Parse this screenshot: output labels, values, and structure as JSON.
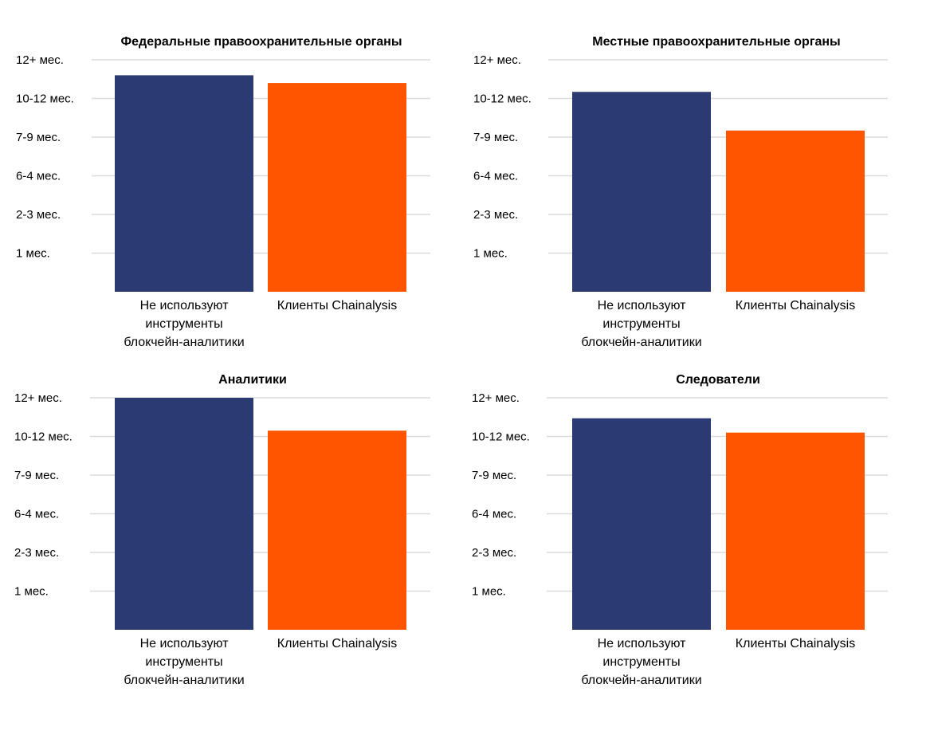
{
  "chart_data": [
    {
      "type": "bar",
      "title": "Федеральные правоохранительные органы",
      "y_ticks": [
        "1 мес.",
        "2-3 мес.",
        "6-4 мес.",
        "7-9 мес.",
        "10-12 мес.",
        "12+ мес."
      ],
      "ylim": [
        0,
        6
      ],
      "categories": [
        [
          "Не используют",
          "инструменты",
          "блокчейн-аналитики"
        ],
        [
          "Клиенты Chainalysis"
        ]
      ],
      "values": [
        5.6,
        5.4
      ],
      "colors": [
        "#2b3a73",
        "#ff5500"
      ],
      "grid": true
    },
    {
      "type": "bar",
      "title": "Местные правоохранительные органы",
      "y_ticks": [
        "1 мес.",
        "2-3 мес.",
        "6-4 мес.",
        "7-9 мес.",
        "10-12 мес.",
        "12+ мес."
      ],
      "ylim": [
        0,
        6
      ],
      "categories": [
        [
          "Не используют",
          "инструменты",
          "блокчейн-аналитики"
        ],
        [
          "Клиенты Chainalysis"
        ]
      ],
      "values": [
        5.17,
        4.17
      ],
      "colors": [
        "#2b3a73",
        "#ff5500"
      ],
      "grid": true
    },
    {
      "type": "bar",
      "title": "Аналитики",
      "y_ticks": [
        "1 мес.",
        "2-3 мес.",
        "6-4 мес.",
        "7-9 мес.",
        "10-12 мес.",
        "12+ мес."
      ],
      "ylim": [
        0,
        6
      ],
      "categories": [
        [
          "Не используют",
          "инструменты",
          "блокчейн-аналитики"
        ],
        [
          "Клиенты Chainalysis"
        ]
      ],
      "values": [
        6.0,
        5.15
      ],
      "colors": [
        "#2b3a73",
        "#ff5500"
      ],
      "grid": true
    },
    {
      "type": "bar",
      "title": "Следователи",
      "y_ticks": [
        "1 мес.",
        "2-3 мес.",
        "6-4 мес.",
        "7-9 мес.",
        "10-12 мес.",
        "12+ мес."
      ],
      "ylim": [
        0,
        6
      ],
      "categories": [
        [
          "Не используют",
          "инструменты",
          "блокчейн-аналитики"
        ],
        [
          "Клиенты Chainalysis"
        ]
      ],
      "values": [
        5.47,
        5.1
      ],
      "colors": [
        "#2b3a73",
        "#ff5500"
      ],
      "grid": true
    }
  ]
}
